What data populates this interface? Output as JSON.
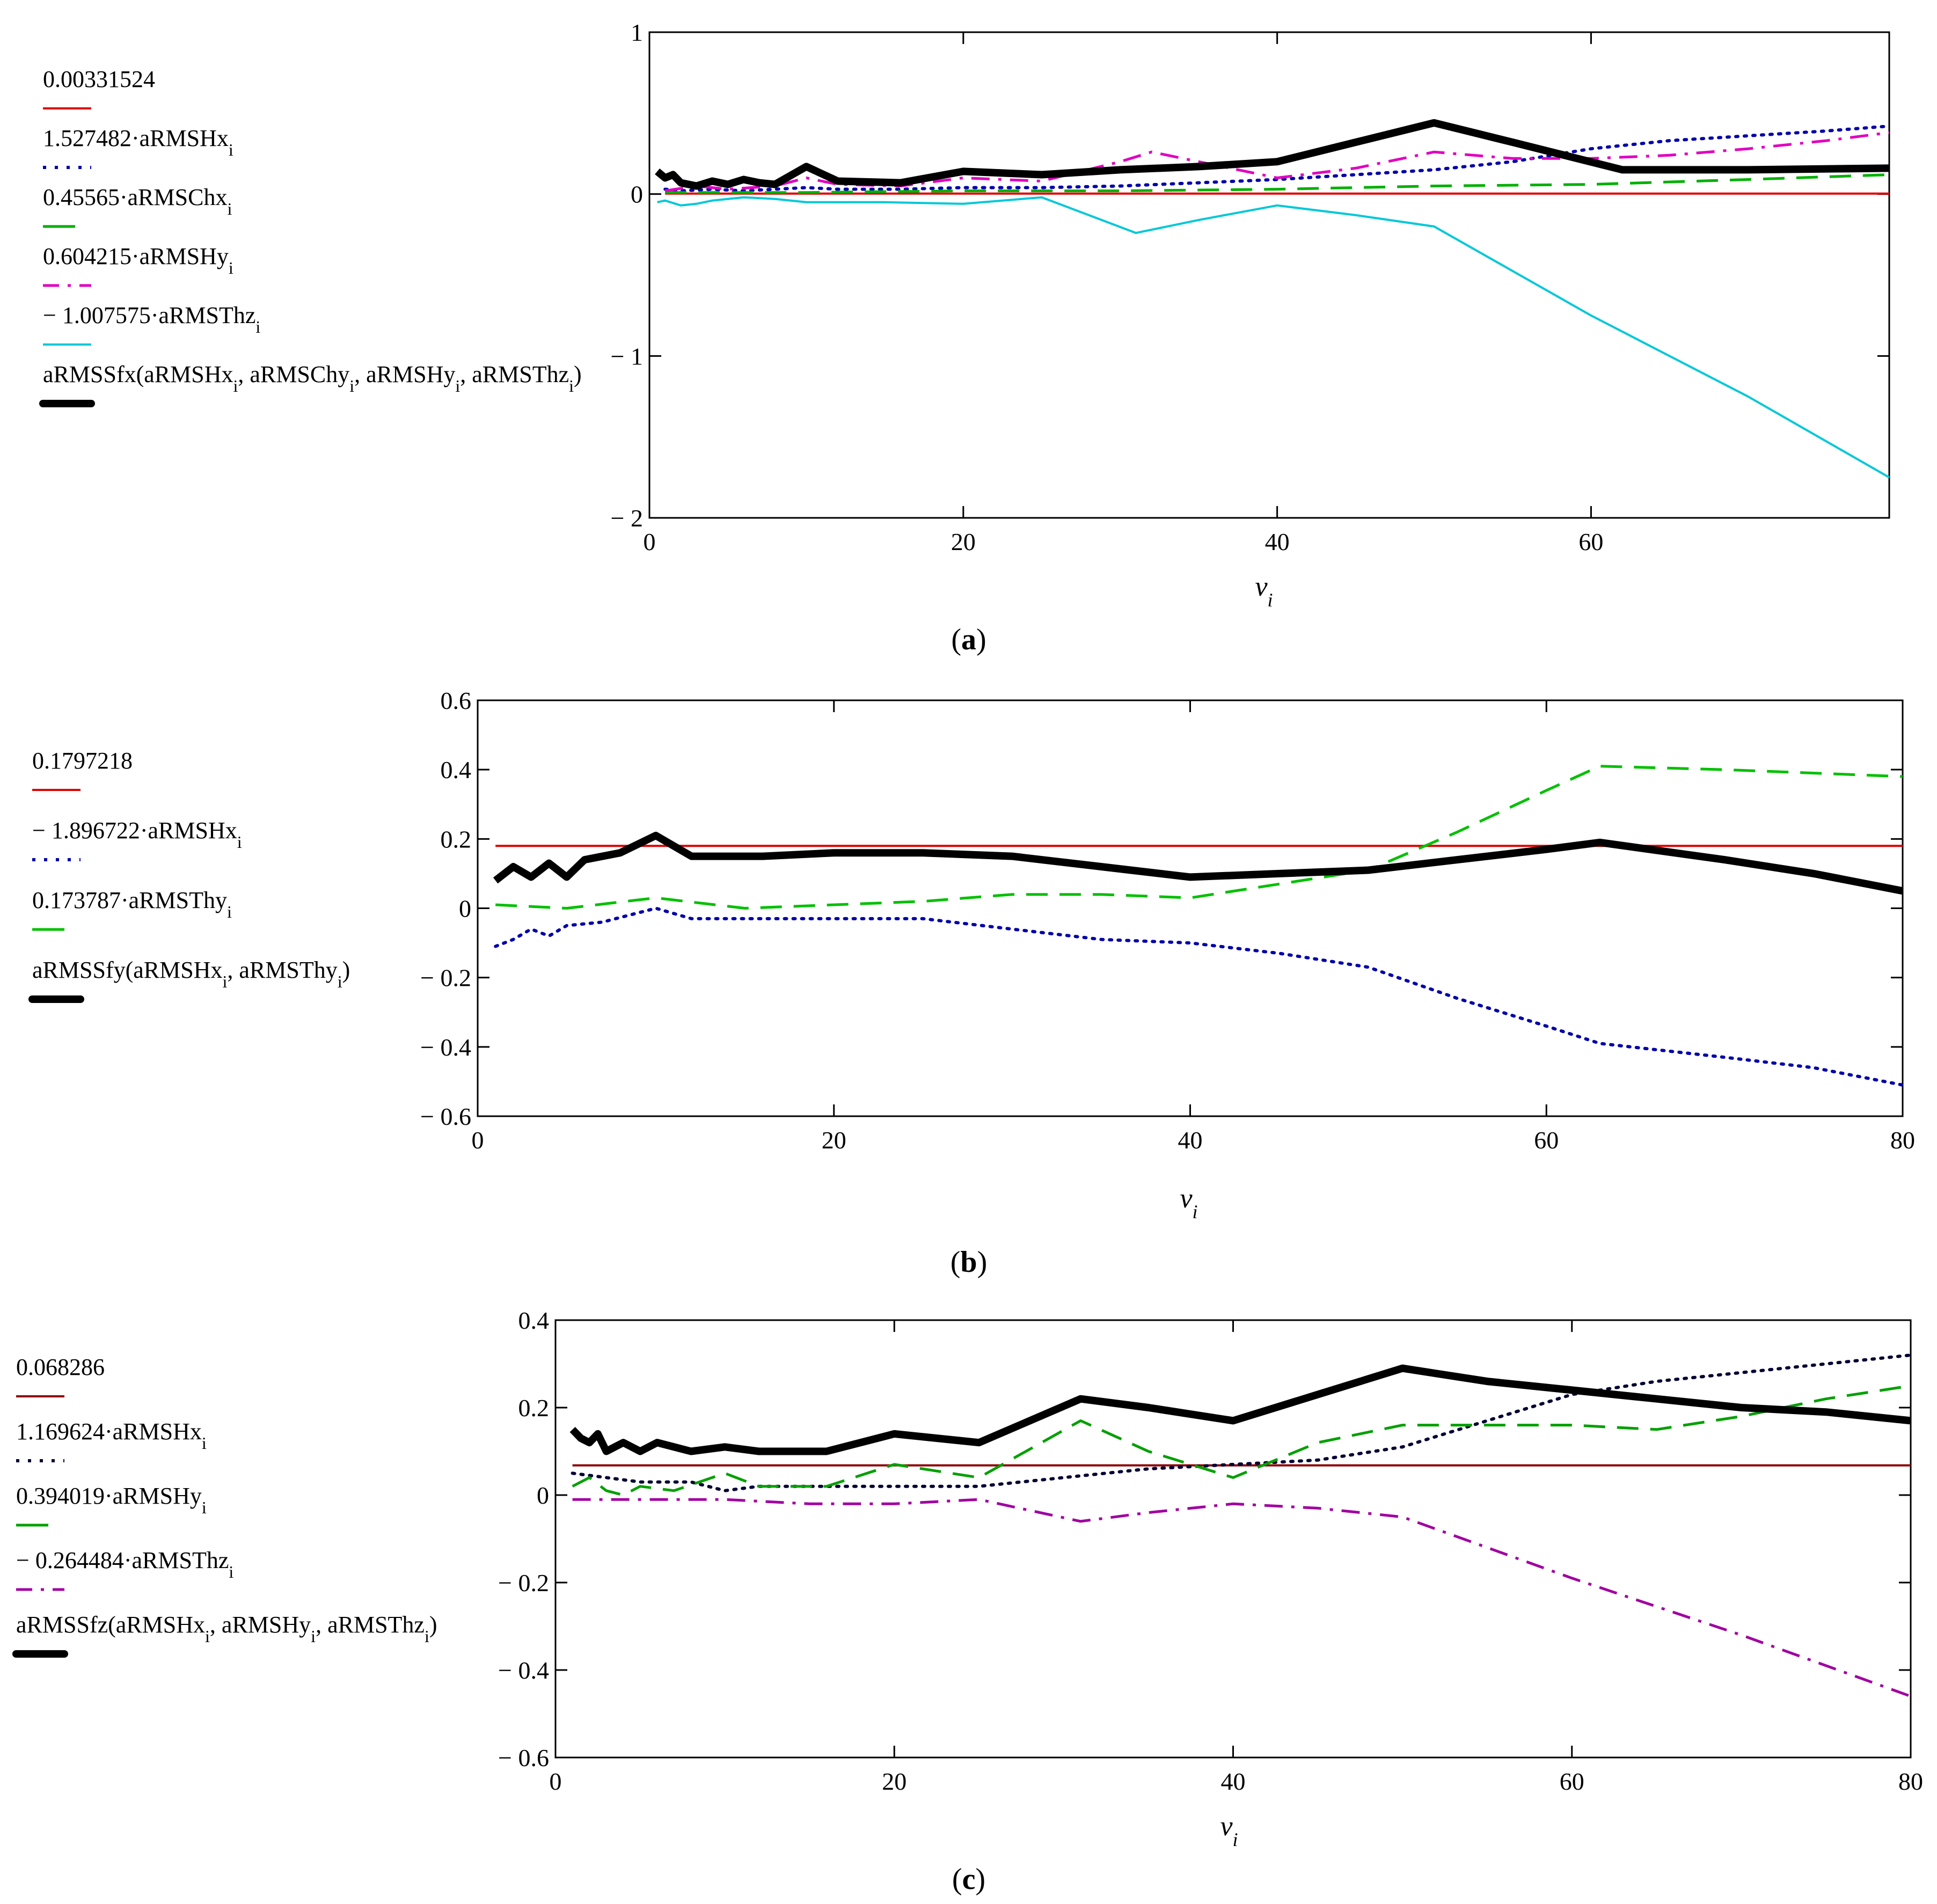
{
  "figure": {
    "panels": [
      {
        "id": "a",
        "caption_label": "a",
        "legend": [
          {
            "text": "0.00331524",
            "color": "#e00000",
            "style": "solid"
          },
          {
            "text": "1.527482·aRMSHx",
            "sub": "i",
            "color": "#0000aa",
            "style": "dotted"
          },
          {
            "text": "0.45565·aRMSChx",
            "sub": "i",
            "color": "#00b000",
            "style": "dashed"
          },
          {
            "text": "0.604215·aRMSHy",
            "sub": "i",
            "color": "#e000c0",
            "style": "dashdot"
          },
          {
            "text": "− 1.007575·aRMSThz",
            "sub": "i",
            "color": "#00c8d8",
            "style": "solid"
          },
          {
            "text": "aRMSSfx(aRMSHx",
            "sub": "i",
            "tail": ", aRMSChy",
            "tail_sub": "i",
            "tail2": ", aRMSHy",
            "tail2_sub": "i",
            "tail3": ", aRMSThz",
            "tail3_sub": "i",
            "tail4": ")",
            "color": "#000000",
            "style": "bold"
          }
        ],
        "x_var": "ν",
        "x_sub": "i"
      },
      {
        "id": "b",
        "caption_label": "b",
        "legend": [
          {
            "text": "0.1797218",
            "color": "#e00000",
            "style": "solid"
          },
          {
            "text": "− 1.896722·aRMSHx",
            "sub": "i",
            "color": "#0000aa",
            "style": "dotted"
          },
          {
            "text": "0.173787·aRMSThy",
            "sub": "i",
            "color": "#00c000",
            "style": "dashed"
          },
          {
            "text": "aRMSSfy(aRMSHx",
            "sub": "i",
            "tail": ", aRMSThy",
            "tail_sub": "i",
            "tail4": ")",
            "color": "#000000",
            "style": "bold"
          }
        ],
        "x_var": "ν",
        "x_sub": "i"
      },
      {
        "id": "c",
        "caption_label": "c",
        "legend": [
          {
            "text": "0.068286",
            "color": "#8b0000",
            "style": "solid"
          },
          {
            "text": "1.169624·aRMSHx",
            "sub": "i",
            "color": "#000033",
            "style": "dotted"
          },
          {
            "text": "0.394019·aRMSHy",
            "sub": "i",
            "color": "#00a000",
            "style": "dashed"
          },
          {
            "text": "− 0.264484·aRMSThz",
            "sub": "i",
            "color": "#a000a0",
            "style": "dashdot"
          },
          {
            "text": "aRMSSfz(aRMSHx",
            "sub": "i",
            "tail": ", aRMSHy",
            "tail_sub": "i",
            "tail2": ", aRMSThz",
            "tail2_sub": "i",
            "tail4": ")",
            "color": "#000000",
            "style": "bold"
          }
        ],
        "x_var": "ν",
        "x_sub": "i"
      }
    ]
  },
  "chart_data": [
    {
      "type": "line",
      "panel": "a",
      "xlim": [
        0,
        79
      ],
      "ylim": [
        -2,
        1
      ],
      "x_ticks": [
        0,
        20,
        40,
        60
      ],
      "x_tick_labels": [
        "0",
        "20",
        "40",
        "60"
      ],
      "y_ticks": [
        -2,
        -1,
        0,
        1
      ],
      "y_tick_labels": [
        "− 2",
        "− 1",
        "0",
        "1"
      ],
      "xlabel": "ν",
      "xlabel_sub": "i",
      "series": [
        {
          "name": "0.00331524",
          "color": "#e00000",
          "style": "solid",
          "x": [
            1,
            79
          ],
          "y": [
            0.0033,
            0.0033
          ]
        },
        {
          "name": "1.527482·aRMSHx_i",
          "color": "#0000aa",
          "style": "dotted",
          "x": [
            1,
            2,
            4,
            6,
            8,
            10,
            12,
            16,
            20,
            25,
            30,
            35,
            40,
            45,
            50,
            55,
            60,
            65,
            70,
            75,
            79
          ],
          "y": [
            0.03,
            0.02,
            0.03,
            0.02,
            0.03,
            0.04,
            0.03,
            0.03,
            0.04,
            0.04,
            0.05,
            0.07,
            0.09,
            0.12,
            0.15,
            0.2,
            0.28,
            0.33,
            0.36,
            0.39,
            0.42
          ]
        },
        {
          "name": "0.45565·aRMSChx_i",
          "color": "#00b000",
          "style": "dashed",
          "x": [
            1,
            10,
            20,
            30,
            40,
            50,
            60,
            70,
            79
          ],
          "y": [
            0.01,
            0.01,
            0.02,
            0.02,
            0.03,
            0.05,
            0.06,
            0.09,
            0.12
          ]
        },
        {
          "name": "0.604215·aRMSHy_i",
          "color": "#e000c0",
          "style": "dashdot",
          "x": [
            1,
            3,
            5,
            8,
            10,
            12,
            16,
            20,
            25,
            30,
            32,
            35,
            40,
            45,
            50,
            55,
            60,
            65,
            70,
            75,
            79
          ],
          "y": [
            0.02,
            0.05,
            0.03,
            0.05,
            0.1,
            0.06,
            0.05,
            0.1,
            0.08,
            0.2,
            0.26,
            0.2,
            0.1,
            0.16,
            0.26,
            0.22,
            0.22,
            0.24,
            0.28,
            0.33,
            0.38
          ]
        },
        {
          "name": "− 1.007575·aRMSThz_i",
          "color": "#00c8d8",
          "style": "solid",
          "x": [
            0.5,
            1,
            2,
            3,
            4,
            6,
            8,
            10,
            15,
            20,
            25,
            31,
            35,
            40,
            45,
            50,
            60,
            70,
            79
          ],
          "y": [
            -0.05,
            -0.04,
            -0.07,
            -0.06,
            -0.04,
            -0.02,
            -0.03,
            -0.05,
            -0.05,
            -0.06,
            -0.02,
            -0.24,
            -0.16,
            -0.07,
            -0.13,
            -0.2,
            -0.75,
            -1.25,
            -1.75
          ]
        },
        {
          "name": "aRMSSfx(aRMSHx_i, aRMSChy_i, aRMSHy_i, aRMSThz_i)",
          "color": "#000000",
          "style": "bold",
          "x": [
            0.5,
            1,
            1.5,
            2,
            3,
            4,
            5,
            6,
            7,
            8,
            10,
            12,
            16,
            20,
            25,
            30,
            35,
            40,
            45,
            50,
            55,
            62,
            70,
            79
          ],
          "y": [
            0.14,
            0.1,
            0.12,
            0.07,
            0.05,
            0.08,
            0.06,
            0.09,
            0.07,
            0.06,
            0.17,
            0.08,
            0.07,
            0.14,
            0.12,
            0.15,
            0.17,
            0.2,
            0.32,
            0.44,
            0.32,
            0.15,
            0.15,
            0.16
          ]
        }
      ]
    },
    {
      "type": "line",
      "panel": "b",
      "xlim": [
        0,
        80
      ],
      "ylim": [
        -0.6,
        0.6
      ],
      "x_ticks": [
        0,
        20,
        40,
        60,
        80
      ],
      "x_tick_labels": [
        "0",
        "20",
        "40",
        "60",
        "80"
      ],
      "y_ticks": [
        -0.6,
        -0.4,
        -0.2,
        0,
        0.2,
        0.4,
        0.6
      ],
      "y_tick_labels": [
        "− 0.6",
        "− 0.4",
        "− 0.2",
        "0",
        "0.2",
        "0.4",
        "0.6"
      ],
      "xlabel": "ν",
      "xlabel_sub": "i",
      "series": [
        {
          "name": "0.1797218",
          "color": "#e00000",
          "style": "solid",
          "x": [
            1,
            80
          ],
          "y": [
            0.18,
            0.18
          ]
        },
        {
          "name": "− 1.896722·aRMSHx_i",
          "color": "#0000aa",
          "style": "dotted",
          "x": [
            1,
            2,
            3,
            4,
            5,
            7,
            10,
            12,
            16,
            20,
            25,
            30,
            35,
            40,
            45,
            50,
            55,
            60,
            63,
            70,
            75,
            80
          ],
          "y": [
            -0.11,
            -0.09,
            -0.06,
            -0.08,
            -0.05,
            -0.04,
            0.0,
            -0.03,
            -0.03,
            -0.03,
            -0.03,
            -0.06,
            -0.09,
            -0.1,
            -0.13,
            -0.17,
            -0.26,
            -0.34,
            -0.39,
            -0.43,
            -0.46,
            -0.51
          ]
        },
        {
          "name": "0.173787·aRMSThy_i",
          "color": "#00c000",
          "style": "dashed",
          "x": [
            1,
            5,
            10,
            15,
            20,
            25,
            30,
            35,
            40,
            45,
            50,
            55,
            60,
            63,
            70,
            75,
            80
          ],
          "y": [
            0.01,
            0.0,
            0.03,
            0.0,
            0.01,
            0.02,
            0.04,
            0.04,
            0.03,
            0.07,
            0.11,
            0.22,
            0.34,
            0.41,
            0.4,
            0.39,
            0.38
          ]
        },
        {
          "name": "aRMSSfy(aRMSHx_i, aRMSThy_i)",
          "color": "#000000",
          "style": "bold",
          "x": [
            1,
            2,
            3,
            4,
            5,
            6,
            8,
            10,
            12,
            16,
            20,
            25,
            30,
            35,
            40,
            45,
            50,
            55,
            60,
            63,
            70,
            75,
            80
          ],
          "y": [
            0.08,
            0.12,
            0.09,
            0.13,
            0.09,
            0.14,
            0.16,
            0.21,
            0.15,
            0.15,
            0.16,
            0.16,
            0.15,
            0.12,
            0.09,
            0.1,
            0.11,
            0.14,
            0.17,
            0.19,
            0.14,
            0.1,
            0.05
          ]
        }
      ]
    },
    {
      "type": "line",
      "panel": "c",
      "xlim": [
        0,
        80
      ],
      "ylim": [
        -0.6,
        0.4
      ],
      "x_ticks": [
        0,
        20,
        40,
        60,
        80
      ],
      "x_tick_labels": [
        "0",
        "20",
        "40",
        "60",
        "80"
      ],
      "y_ticks": [
        -0.6,
        -0.4,
        -0.2,
        0,
        0.2,
        0.4
      ],
      "y_tick_labels": [
        "− 0.6",
        "− 0.4",
        "− 0.2",
        "0",
        "0.2",
        "0.4"
      ],
      "xlabel": "ν",
      "xlabel_sub": "i",
      "series": [
        {
          "name": "0.068286",
          "color": "#8b0000",
          "style": "solid",
          "x": [
            1,
            80
          ],
          "y": [
            0.068,
            0.068
          ]
        },
        {
          "name": "1.169624·aRMSHx_i",
          "color": "#000033",
          "style": "dotted",
          "x": [
            1,
            3,
            5,
            8,
            10,
            12,
            20,
            25,
            30,
            35,
            40,
            45,
            50,
            55,
            60,
            65,
            70,
            75,
            80
          ],
          "y": [
            0.05,
            0.04,
            0.03,
            0.03,
            0.01,
            0.02,
            0.02,
            0.02,
            0.04,
            0.06,
            0.07,
            0.08,
            0.11,
            0.17,
            0.23,
            0.26,
            0.28,
            0.3,
            0.32
          ]
        },
        {
          "name": "0.394019·aRMSHy_i",
          "color": "#00a000",
          "style": "dashed",
          "x": [
            1,
            2,
            3,
            4,
            5,
            7,
            10,
            12,
            16,
            20,
            25,
            31,
            35,
            40,
            45,
            50,
            55,
            60,
            65,
            70,
            75,
            80
          ],
          "y": [
            0.02,
            0.04,
            0.01,
            0.0,
            0.02,
            0.01,
            0.05,
            0.02,
            0.02,
            0.07,
            0.04,
            0.17,
            0.1,
            0.04,
            0.12,
            0.16,
            0.16,
            0.16,
            0.15,
            0.18,
            0.22,
            0.25
          ]
        },
        {
          "name": "− 0.264484·aRMSThz_i",
          "color": "#a000a0",
          "style": "dashdot",
          "x": [
            1,
            5,
            10,
            15,
            20,
            25,
            31,
            35,
            40,
            45,
            50,
            60,
            70,
            80
          ],
          "y": [
            -0.01,
            -0.01,
            -0.01,
            -0.02,
            -0.02,
            -0.01,
            -0.06,
            -0.04,
            -0.02,
            -0.03,
            -0.05,
            -0.19,
            -0.32,
            -0.46
          ]
        },
        {
          "name": "aRMSSfz(aRMSHx_i, aRMSHy_i, aRMSThz_i)",
          "color": "#000000",
          "style": "bold",
          "x": [
            1,
            1.5,
            2,
            2.5,
            3,
            4,
            5,
            6,
            7,
            8,
            10,
            12,
            16,
            20,
            25,
            31,
            35,
            40,
            45,
            50,
            55,
            60,
            65,
            70,
            75,
            80
          ],
          "y": [
            0.15,
            0.13,
            0.12,
            0.14,
            0.1,
            0.12,
            0.1,
            0.12,
            0.11,
            0.1,
            0.11,
            0.1,
            0.1,
            0.14,
            0.12,
            0.22,
            0.2,
            0.17,
            0.23,
            0.29,
            0.26,
            0.24,
            0.22,
            0.2,
            0.19,
            0.17
          ]
        }
      ]
    }
  ]
}
